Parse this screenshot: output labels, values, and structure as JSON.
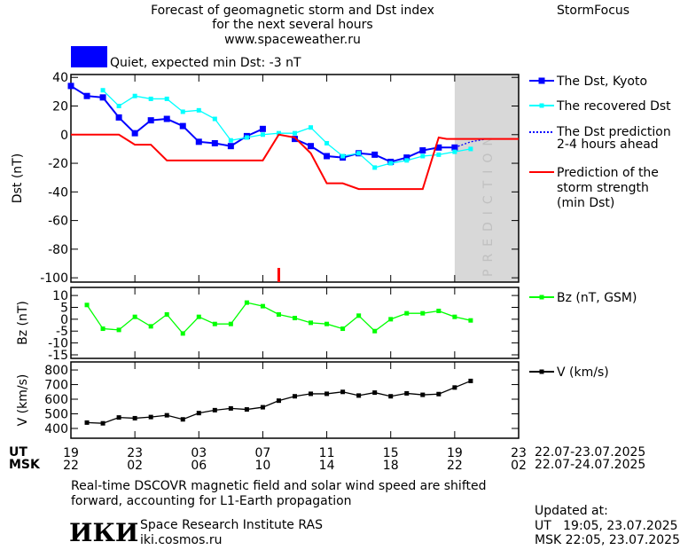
{
  "header": {
    "title_lines": [
      "Forecast of geomagnetic storm and Dst index",
      "for the next several hours",
      "www.spaceweather.ru"
    ],
    "brand": "StormFocus"
  },
  "status": {
    "label": "Quiet, expected min Dst: -3 nT",
    "color": "#0000ff"
  },
  "colors": {
    "dst": "#0000ff",
    "recovered": "#00ffff",
    "prediction": "#0000ff",
    "storm": "#ff0000",
    "bz": "#00ff00",
    "v": "#000000",
    "prediction_band": "#d8d8d8"
  },
  "prediction_band_label": "PREDICTION",
  "legend": {
    "dst": "The Dst, Kyoto",
    "recovered": "The recovered Dst",
    "prediction": [
      "The Dst prediction",
      "2-4 hours ahead"
    ],
    "storm": [
      "Prediction of the",
      "storm strength",
      "(min Dst)"
    ],
    "bz": "Bz (nT, GSM)",
    "v": "V (km/s)"
  },
  "axis": {
    "ut_label": "UT",
    "msk_label": "MSK",
    "ut_ticks": [
      "19",
      "23",
      "03",
      "07",
      "11",
      "15",
      "19",
      "23"
    ],
    "msk_ticks": [
      "22",
      "02",
      "06",
      "10",
      "14",
      "18",
      "22",
      "02"
    ],
    "ut_range": "22.07-23.07.2025",
    "msk_range": "22.07-24.07.2025"
  },
  "footer": {
    "note_lines": [
      "Real-time DSCOVR magnetic field and solar wind speed are shifted",
      "forward, accounting for L1-Earth propagation"
    ],
    "institute": "Space Research Institute RAS",
    "site": "iki.cosmos.ru",
    "logo": "ИКИ",
    "updated_label": "Updated at:",
    "updated_ut": "UT   19:05, 23.07.2025",
    "updated_msk": "MSK 22:05, 23.07.2025"
  },
  "chart_data": [
    {
      "type": "line",
      "ylabel": "Dst (nT)",
      "ylim": [
        -103,
        42
      ],
      "yticks": [
        40,
        20,
        0,
        -20,
        -40,
        -60,
        -80,
        -100
      ],
      "x_unit": "hours since 19 UT 22.07",
      "series": [
        {
          "name": "The Dst, Kyoto",
          "x": [
            0,
            1,
            2,
            3,
            4,
            5,
            6,
            7,
            8,
            9,
            10,
            11,
            12,
            null,
            14,
            15,
            16,
            17,
            18,
            19,
            20,
            21,
            22,
            23,
            24
          ],
          "y": [
            34,
            27,
            26,
            12,
            1,
            10,
            11,
            6,
            -5,
            -6,
            -8,
            -1,
            4,
            null,
            -3,
            -8,
            -15,
            -16,
            -13,
            -14,
            -19,
            -16,
            -11,
            -9,
            -9
          ]
        },
        {
          "name": "The recovered Dst",
          "x": [
            2,
            3,
            4,
            5,
            6,
            7,
            8,
            9,
            10,
            11,
            12,
            13,
            14,
            15,
            16,
            17,
            18,
            19,
            20,
            21,
            22,
            23,
            24,
            25
          ],
          "y": [
            31,
            20,
            27,
            25,
            25,
            16,
            17,
            11,
            -4,
            -2,
            0,
            1,
            1,
            5,
            -6,
            -15,
            -13,
            -23,
            -20,
            -18,
            -15,
            -14,
            -12,
            -10
          ]
        },
        {
          "name": "The Dst prediction 2-4 hours ahead",
          "x": [
            24,
            25,
            26
          ],
          "y": [
            -9,
            -5,
            -3
          ]
        },
        {
          "name": "Prediction of the storm strength (min Dst)",
          "x": [
            0,
            3,
            4,
            5,
            6,
            7,
            12,
            13,
            14,
            15,
            16,
            17,
            18,
            22,
            23,
            23.5,
            28
          ],
          "y": [
            0,
            0,
            -7,
            -7,
            -18,
            -18,
            -18,
            0,
            -2,
            -13,
            -34,
            -34,
            -38,
            -38,
            -2,
            -3,
            -3
          ]
        }
      ],
      "marker_x": 13
    },
    {
      "type": "line",
      "ylabel": "Bz (nT)",
      "ylim": [
        -16.5,
        13.4
      ],
      "yticks": [
        10,
        5,
        0,
        -5,
        -10,
        -15
      ],
      "series": [
        {
          "name": "Bz (nT, GSM)",
          "x": [
            1,
            2,
            3,
            4,
            5,
            6,
            7,
            8,
            9,
            10,
            11,
            12,
            13,
            14,
            15,
            16,
            17,
            18,
            19,
            20,
            21,
            22,
            23,
            24,
            25
          ],
          "y": [
            6,
            -4,
            -4.5,
            1,
            -3,
            2,
            -6,
            1,
            -2,
            -2,
            7,
            5.5,
            2,
            0.5,
            -1.5,
            -2,
            -4,
            1.5,
            -5,
            0,
            2.5,
            2.5,
            3.5,
            1,
            -0.5
          ]
        }
      ]
    },
    {
      "type": "line",
      "ylabel": "V (km/s)",
      "ylim": [
        333,
        855
      ],
      "yticks": [
        800,
        700,
        600,
        500,
        400
      ],
      "series": [
        {
          "name": "V (km/s)",
          "x": [
            1,
            2,
            3,
            4,
            5,
            6,
            7,
            8,
            9,
            10,
            11,
            12,
            13,
            14,
            15,
            16,
            17,
            18,
            19,
            20,
            21,
            22,
            23,
            24,
            25
          ],
          "y": [
            440,
            435,
            475,
            470,
            478,
            490,
            462,
            505,
            525,
            537,
            530,
            545,
            590,
            620,
            637,
            637,
            650,
            625,
            645,
            620,
            640,
            630,
            635,
            680,
            725
          ]
        }
      ]
    }
  ]
}
